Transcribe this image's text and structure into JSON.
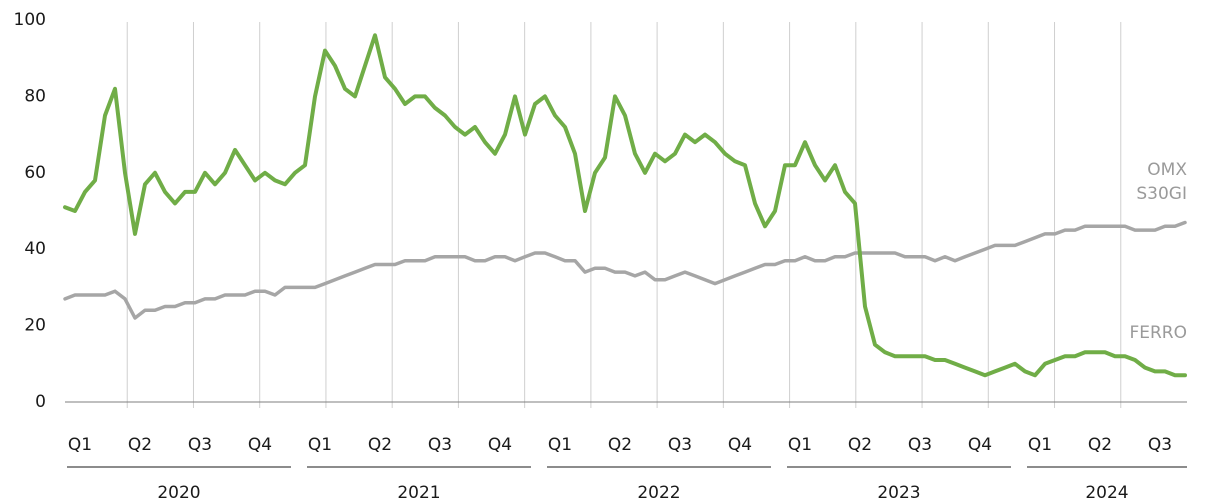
{
  "chart_data": {
    "type": "line",
    "categories": [
      "Q1",
      null,
      null,
      null,
      null,
      null,
      "Q2",
      null,
      null,
      null,
      null,
      null,
      "Q3",
      null,
      null,
      null,
      null,
      null,
      "Q4",
      null,
      null,
      null,
      null,
      null,
      "Q1",
      null,
      null,
      null,
      null,
      null,
      "Q2",
      null,
      null,
      null,
      null,
      null,
      "Q3",
      null,
      null,
      null,
      null,
      null,
      "Q4",
      null,
      null,
      null,
      null,
      null,
      "Q1",
      null,
      null,
      null,
      null,
      null,
      "Q2",
      null,
      null,
      null,
      null,
      null,
      "Q3",
      null,
      null,
      null,
      null,
      null,
      "Q4",
      null,
      null,
      null,
      null,
      null,
      "Q1",
      null,
      null,
      null,
      null,
      null,
      "Q2",
      null,
      null,
      null,
      null,
      null,
      "Q3",
      null,
      null,
      null,
      null,
      null,
      "Q4",
      null,
      null,
      null,
      null,
      null,
      "Q1",
      null,
      null,
      null,
      null,
      null,
      "Q2",
      null,
      null,
      null,
      null,
      null,
      "Q3",
      null,
      null,
      null,
      null
    ],
    "years": [
      "2020",
      "2021",
      "2022",
      "2023",
      "2024"
    ],
    "series": [
      {
        "name": "OMX S30GI",
        "color": "#a6a6a6",
        "values": [
          27,
          28,
          28,
          28,
          28,
          29,
          27,
          22,
          24,
          24,
          25,
          25,
          26,
          26,
          27,
          27,
          28,
          28,
          28,
          29,
          29,
          28,
          30,
          30,
          30,
          30,
          31,
          32,
          33,
          34,
          35,
          36,
          36,
          36,
          37,
          37,
          37,
          38,
          38,
          38,
          38,
          37,
          37,
          38,
          38,
          37,
          38,
          39,
          39,
          38,
          37,
          37,
          34,
          35,
          35,
          34,
          34,
          33,
          34,
          32,
          32,
          33,
          34,
          33,
          32,
          31,
          32,
          33,
          34,
          35,
          36,
          36,
          37,
          37,
          38,
          37,
          37,
          38,
          38,
          39,
          39,
          39,
          39,
          39,
          38,
          38,
          38,
          37,
          38,
          37,
          38,
          39,
          40,
          41,
          41,
          41,
          42,
          43,
          44,
          44,
          45,
          45,
          46,
          46,
          46,
          46,
          46,
          45,
          45,
          45,
          46,
          46,
          47
        ]
      },
      {
        "name": "FERRO",
        "color": "#70ad47",
        "values": [
          51,
          50,
          55,
          58,
          75,
          82,
          60,
          44,
          57,
          60,
          55,
          52,
          55,
          55,
          60,
          57,
          60,
          66,
          62,
          58,
          60,
          58,
          57,
          60,
          62,
          80,
          92,
          88,
          82,
          80,
          88,
          96,
          85,
          82,
          78,
          80,
          80,
          77,
          75,
          72,
          70,
          72,
          68,
          65,
          70,
          80,
          70,
          78,
          80,
          75,
          72,
          65,
          50,
          60,
          64,
          80,
          75,
          65,
          60,
          65,
          63,
          65,
          70,
          68,
          70,
          68,
          65,
          63,
          62,
          52,
          46,
          50,
          62,
          62,
          68,
          62,
          58,
          62,
          55,
          52,
          25,
          15,
          13,
          12,
          12,
          12,
          12,
          11,
          11,
          10,
          9,
          8,
          7,
          8,
          9,
          10,
          8,
          7,
          10,
          11,
          12,
          12,
          13,
          13,
          13,
          12,
          12,
          11,
          9,
          8,
          8,
          7,
          7
        ]
      }
    ],
    "ylim": [
      0,
      100
    ],
    "yticks": [
      0,
      20,
      40,
      60,
      80,
      100
    ]
  }
}
